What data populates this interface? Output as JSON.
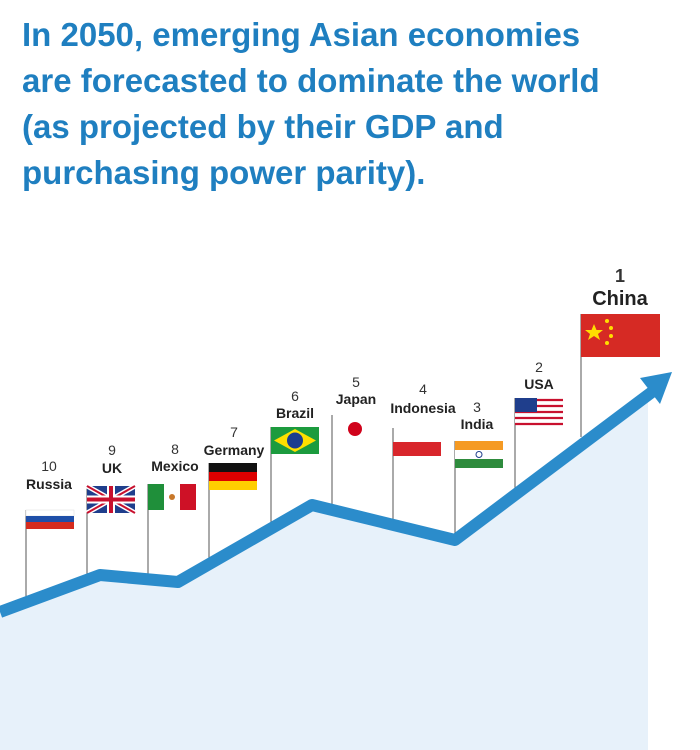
{
  "title": [
    "In 2050, emerging Asian economies",
    "are forecasted to dominate the world",
    "(as projected by their GDP and",
    "purchasing power parity)."
  ],
  "countries": [
    {
      "rank": 10,
      "name": "Russia"
    },
    {
      "rank": 9,
      "name": "UK"
    },
    {
      "rank": 8,
      "name": "Mexico"
    },
    {
      "rank": 7,
      "name": "Germany"
    },
    {
      "rank": 6,
      "name": "Brazil"
    },
    {
      "rank": 5,
      "name": "Japan"
    },
    {
      "rank": 4,
      "name": "Indonesia"
    },
    {
      "rank": 3,
      "name": "India"
    },
    {
      "rank": 2,
      "name": "USA"
    },
    {
      "rank": 1,
      "name": "China"
    }
  ]
}
